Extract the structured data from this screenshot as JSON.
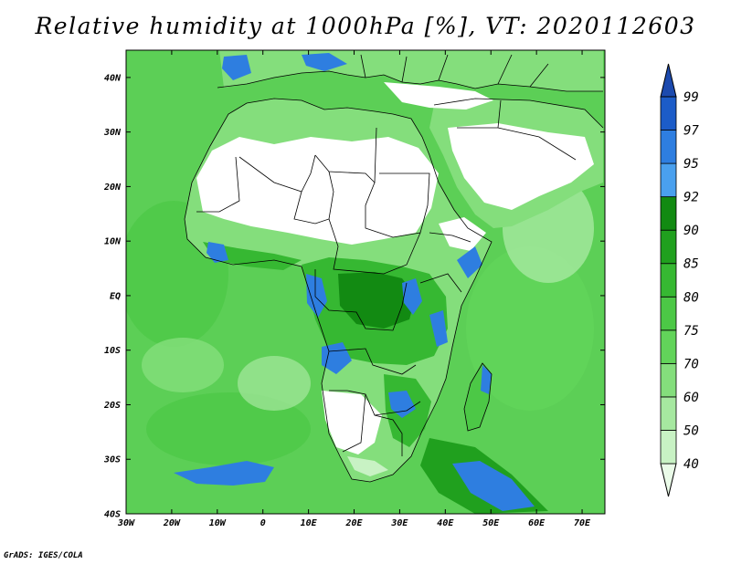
{
  "title": "Relative humidity at 1000hPa [%], VT: 2020112603",
  "credit": "GrADS: IGES/COLA",
  "map": {
    "lon_range": [
      -30,
      75
    ],
    "lat_range": [
      -40,
      45
    ],
    "lon_ticks": [
      {
        "value": -30,
        "label": "30W"
      },
      {
        "value": -20,
        "label": "20W"
      },
      {
        "value": -10,
        "label": "10W"
      },
      {
        "value": 0,
        "label": "0"
      },
      {
        "value": 10,
        "label": "10E"
      },
      {
        "value": 20,
        "label": "20E"
      },
      {
        "value": 30,
        "label": "30E"
      },
      {
        "value": 40,
        "label": "40E"
      },
      {
        "value": 50,
        "label": "50E"
      },
      {
        "value": 60,
        "label": "60E"
      },
      {
        "value": 70,
        "label": "70E"
      }
    ],
    "lat_ticks": [
      {
        "value": 40,
        "label": "40N"
      },
      {
        "value": 30,
        "label": "30N"
      },
      {
        "value": 20,
        "label": "20N"
      },
      {
        "value": 10,
        "label": "10N"
      },
      {
        "value": 0,
        "label": "EQ"
      },
      {
        "value": -10,
        "label": "10S"
      },
      {
        "value": -20,
        "label": "20S"
      },
      {
        "value": -30,
        "label": "30S"
      },
      {
        "value": -40,
        "label": "40S"
      }
    ]
  },
  "colorbar": {
    "levels": [
      "40",
      "50",
      "60",
      "70",
      "75",
      "80",
      "85",
      "90",
      "92",
      "95",
      "97",
      "99"
    ],
    "colors": [
      "#eafbe8",
      "#c8f2c4",
      "#a6e8a0",
      "#84de7c",
      "#62d45a",
      "#4cc846",
      "#36b832",
      "#20a01e",
      "#128a12",
      "#4aa0ee",
      "#2e7ee0",
      "#1c5cc8",
      "#1c4aae"
    ]
  },
  "colors": {
    "ocean_base": "#5ccf56",
    "land_dry": "#ffffff",
    "land_humid": "#36b832",
    "very_humid": "#2e7ee0",
    "border": "#000000"
  }
}
